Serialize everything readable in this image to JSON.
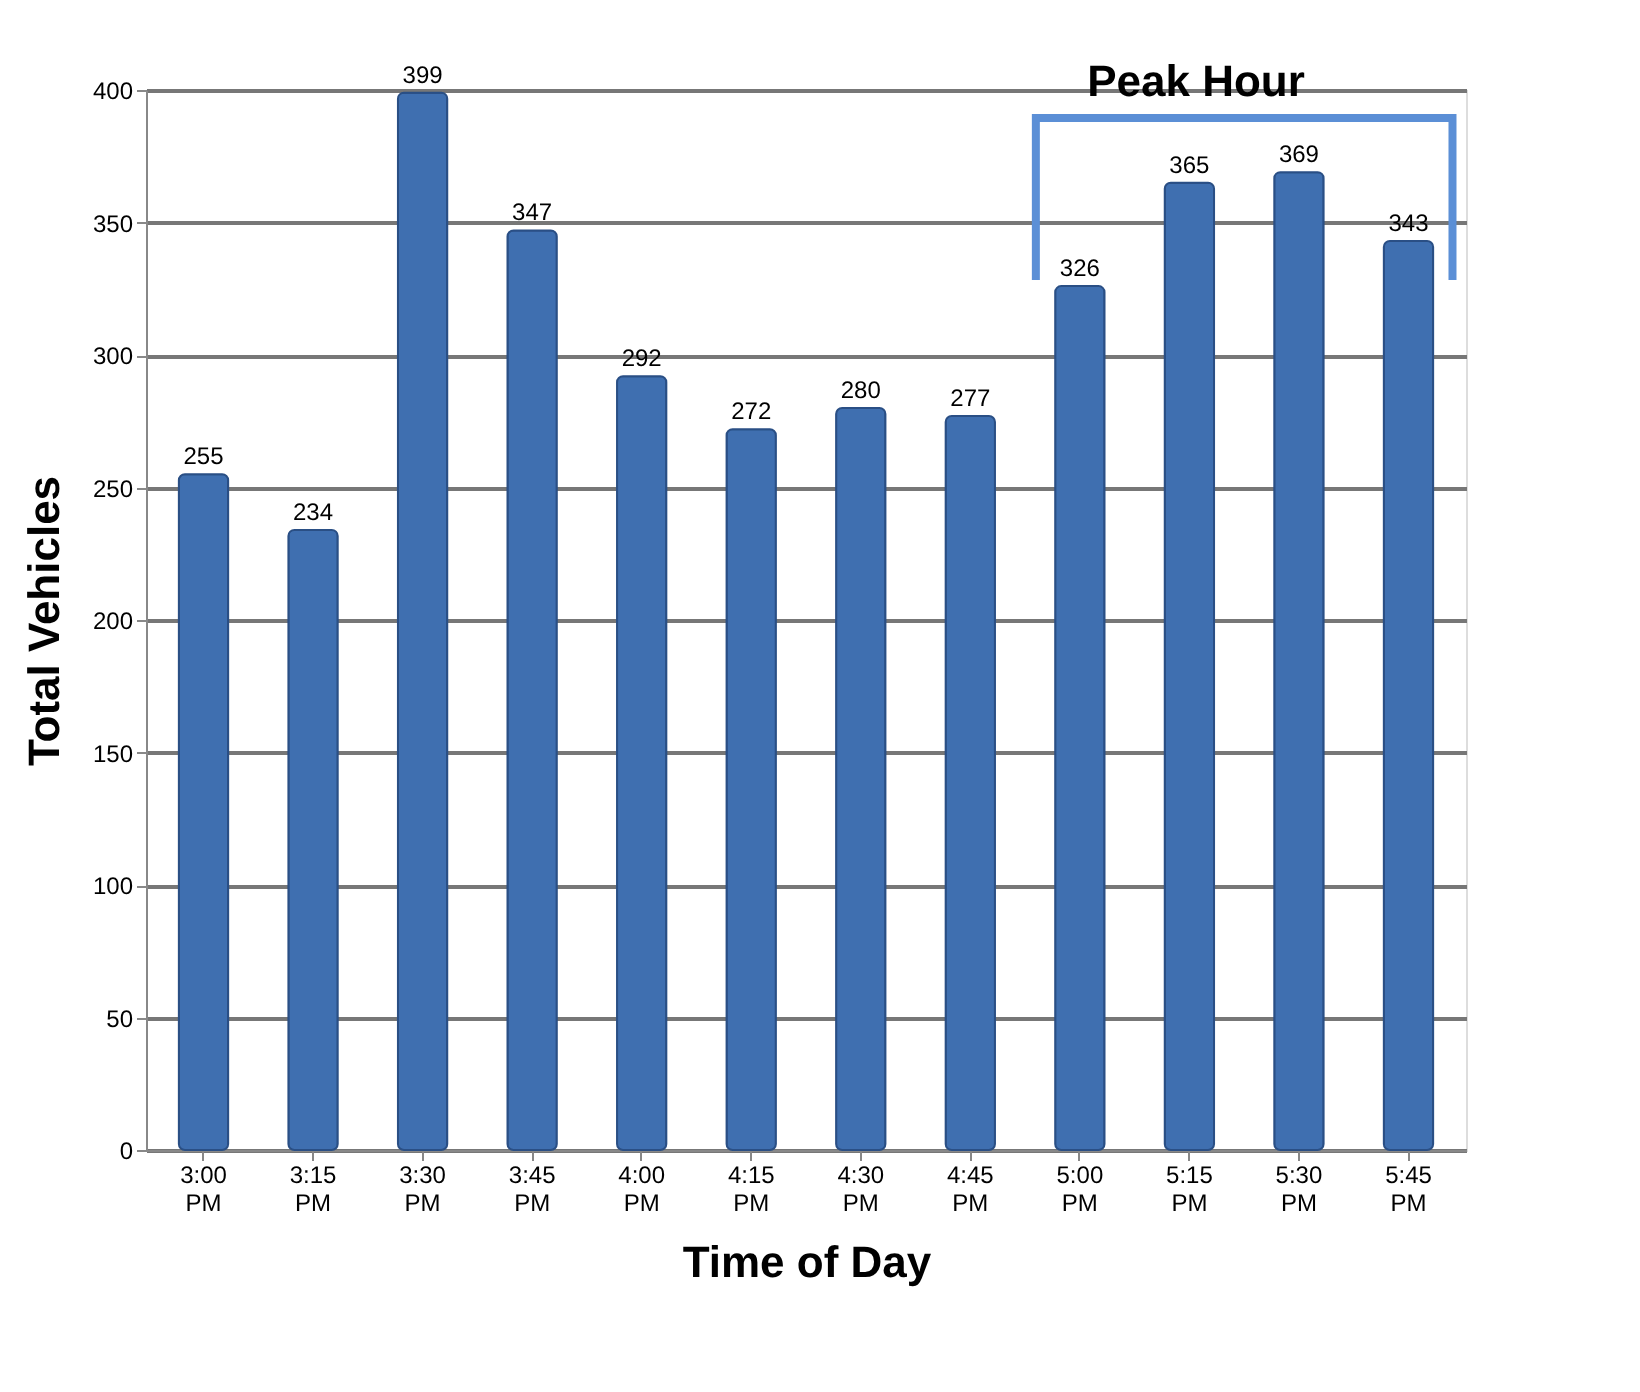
{
  "chart_data": {
    "type": "bar",
    "xlabel": "Time of Day",
    "ylabel": "Total Vehicles",
    "categories": [
      "3:00 PM",
      "3:15 PM",
      "3:30 PM",
      "3:45 PM",
      "4:00 PM",
      "4:15 PM",
      "4:30 PM",
      "4:45 PM",
      "5:00 PM",
      "5:15 PM",
      "5:30 PM",
      "5:45 PM"
    ],
    "values": [
      255,
      234,
      399,
      347,
      292,
      272,
      280,
      277,
      326,
      365,
      369,
      343
    ],
    "color": "#3f6fb0",
    "ylim": [
      0,
      400
    ],
    "yticks": [
      0,
      50,
      100,
      150,
      200,
      250,
      300,
      350,
      400
    ],
    "grid": "y",
    "data_labels": true,
    "annotations": [
      "Peak Hour"
    ]
  }
}
